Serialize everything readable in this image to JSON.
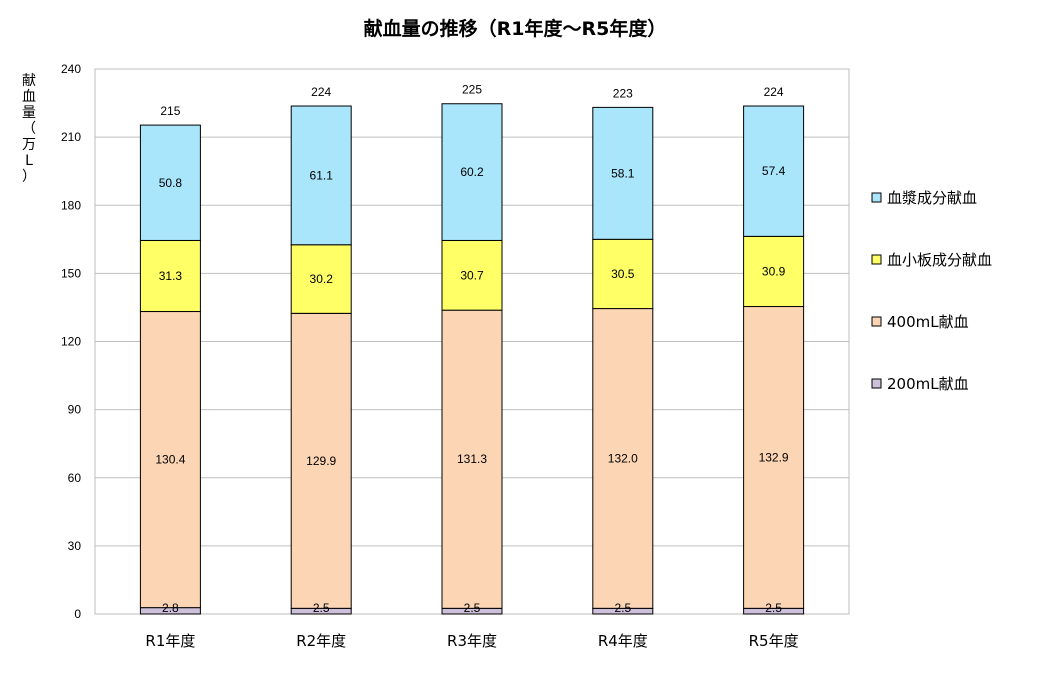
{
  "chart_data": {
    "type": "bar",
    "stacked": true,
    "title": "献血量の推移（R1年度～R5年度）",
    "ylabel_chars": [
      "献",
      "血",
      "量",
      "（",
      "万",
      "L",
      "）"
    ],
    "ylim": [
      0,
      240
    ],
    "yticks": [
      0,
      30,
      60,
      90,
      120,
      150,
      180,
      210,
      240
    ],
    "grid": true,
    "legend_position": "right",
    "categories": [
      "R1年度",
      "R2年度",
      "R3年度",
      "R4年度",
      "R5年度"
    ],
    "series": [
      {
        "name": "200mL献血",
        "color": "#ccc0da",
        "values": [
          2.8,
          2.5,
          2.5,
          2.5,
          2.5
        ],
        "labels": [
          "2.8",
          "2.5",
          "2.5",
          "2.5",
          "2.5"
        ]
      },
      {
        "name": "400mL献血",
        "color": "#fcd5b5",
        "values": [
          130.4,
          129.9,
          131.3,
          132.0,
          132.9
        ],
        "labels": [
          "130.4",
          "129.9",
          "131.3",
          "132.0",
          "132.9"
        ]
      },
      {
        "name": "血小板成分献血",
        "color": "#ffff66",
        "values": [
          31.3,
          30.2,
          30.7,
          30.5,
          30.9
        ],
        "labels": [
          "31.3",
          "30.2",
          "30.7",
          "30.5",
          "30.9"
        ]
      },
      {
        "name": "血漿成分献血",
        "color": "#a9e5fb",
        "values": [
          50.8,
          61.1,
          60.2,
          58.1,
          57.4
        ],
        "labels": [
          "50.8",
          "61.1",
          "60.2",
          "58.1",
          "57.4"
        ]
      }
    ],
    "totals": [
      "215",
      "224",
      "225",
      "223",
      "224"
    ],
    "legend_order": [
      3,
      2,
      1,
      0
    ]
  }
}
